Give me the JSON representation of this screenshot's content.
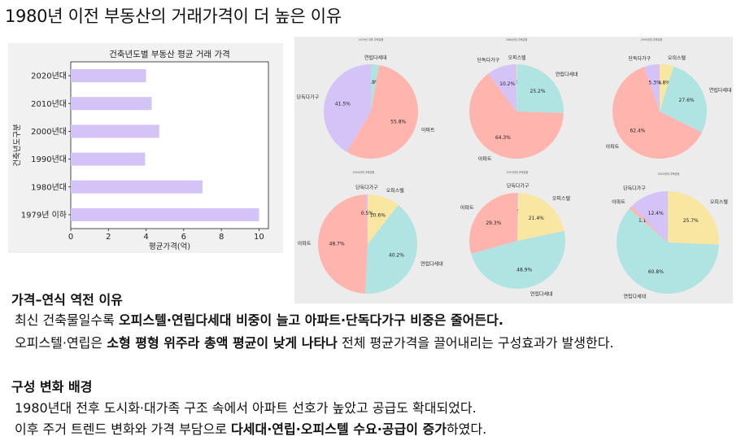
{
  "page": {
    "title": "1980년 이전 부동산의 거래가격이 더 높은 이유"
  },
  "chart_data": [
    {
      "type": "bar",
      "orientation": "horizontal",
      "title": "건축년도별 부동산 평균 거래 가격",
      "xlabel": "평균가격(억)",
      "ylabel": "건축년도구분",
      "categories": [
        "2020년대",
        "2010년대",
        "2000년대",
        "1990년대",
        "1980년대",
        "1979년 이하"
      ],
      "values": [
        4.0,
        4.3,
        4.7,
        3.95,
        7.0,
        10.0
      ],
      "xlim": [
        0,
        10.5
      ],
      "xticks": [
        "0",
        "2",
        "4",
        "6",
        "8",
        "10"
      ],
      "color": "#d3c3f7"
    },
    {
      "type": "pie",
      "title": "1979년 이하 주택유형",
      "slices": [
        {
          "label": "연립다세대",
          "value": 2.8,
          "pct_label": "2.8%",
          "color": "#b0e4e2"
        },
        {
          "label": "아파트",
          "value": 55.8,
          "pct_label": "55.8%",
          "color": "#ffb4ae"
        },
        {
          "label": "단독다가구",
          "value": 41.5,
          "pct_label": "41.5%",
          "color": "#d3c3f7"
        }
      ]
    },
    {
      "type": "pie",
      "title": "1980년대 주택유형",
      "slices": [
        {
          "label": "오피스텔",
          "value": 0.3,
          "pct_label": "0.3%",
          "color": "#f9e6a0"
        },
        {
          "label": "연립다세대",
          "value": 25.2,
          "pct_label": "25.2%",
          "color": "#b0e4e2"
        },
        {
          "label": "아파트",
          "value": 64.3,
          "pct_label": "64.3%",
          "color": "#ffb4ae"
        },
        {
          "label": "단독다가구",
          "value": 10.2,
          "pct_label": "10.2%",
          "color": "#d3c3f7"
        }
      ]
    },
    {
      "type": "pie",
      "title": "1990년대 주택유형",
      "slices": [
        {
          "label": "오피스텔",
          "value": 4.8,
          "pct_label": "4.8%",
          "color": "#f9e6a0"
        },
        {
          "label": "연립다세대",
          "value": 27.6,
          "pct_label": "27.6%",
          "color": "#b0e4e2"
        },
        {
          "label": "아파트",
          "value": 62.4,
          "pct_label": "62.4%",
          "color": "#ffb4ae"
        },
        {
          "label": "단독다가구",
          "value": 5.3,
          "pct_label": "5.3%",
          "color": "#d3c3f7"
        }
      ]
    },
    {
      "type": "pie",
      "title": "2000년대 주택유형",
      "slices": [
        {
          "label": "오피스텔",
          "value": 10.6,
          "pct_label": "10.6%",
          "color": "#f9e6a0"
        },
        {
          "label": "연립다세대",
          "value": 40.2,
          "pct_label": "40.2%",
          "color": "#b0e4e2"
        },
        {
          "label": "아파트",
          "value": 48.7,
          "pct_label": "48.7%",
          "color": "#ffb4ae"
        },
        {
          "label": "단독다가구",
          "value": 0.5,
          "pct_label": "0.5%",
          "color": "#d3c3f7"
        }
      ]
    },
    {
      "type": "pie",
      "title": "2010년대 주택유형",
      "slices": [
        {
          "label": "단독다가구",
          "value": 0.3,
          "pct_label": "0.3%",
          "color": "#d3c3f7"
        },
        {
          "label": "오피스텔",
          "value": 21.4,
          "pct_label": "21.4%",
          "color": "#f9e6a0"
        },
        {
          "label": "연립다세대",
          "value": 48.9,
          "pct_label": "48.9%",
          "color": "#b0e4e2"
        },
        {
          "label": "아파트",
          "value": 29.3,
          "pct_label": "29.3%",
          "color": "#ffb4ae"
        }
      ]
    },
    {
      "type": "pie",
      "title": "2020년대 주택유형",
      "slices": [
        {
          "label": "오피스텔",
          "value": 25.7,
          "pct_label": "25.7%",
          "color": "#f9e6a0"
        },
        {
          "label": "연립다세대",
          "value": 60.8,
          "pct_label": "60.8%",
          "color": "#b0e4e2"
        },
        {
          "label": "아파트",
          "value": 1.1,
          "pct_label": "1.1%",
          "color": "#ffb4ae"
        },
        {
          "label": "단독다가구",
          "value": 12.4,
          "pct_label": "12.4%",
          "color": "#d3c3f7"
        }
      ]
    }
  ],
  "sections": [
    {
      "heading": "가격–연식 역전 이유",
      "lines": [
        [
          {
            "text": "최신 건축물일수록 ",
            "bold": false
          },
          {
            "text": "오피스텔·연립다세대 비중이 늘고 아파트·단독다가구 비중은 줄어든다.",
            "bold": true
          }
        ],
        [
          {
            "text": "오피스텔·연립은 ",
            "bold": false
          },
          {
            "text": "소형 평형 위주라 총액 평균이 낮게 나타나",
            "bold": true
          },
          {
            "text": " 전체 평균가격을 끌어내리는 구성효과가 발생한다.",
            "bold": false
          }
        ]
      ]
    },
    {
      "heading": "구성 변화 배경",
      "lines": [
        [
          {
            "text": "1980년대 전후 도시화·대가족 구조 속에서 아파트 선호가 높았고 공급도 확대되었다.",
            "bold": false
          }
        ],
        [
          {
            "text": "이후 주거 트렌드 변화와 가격 부담으로 ",
            "bold": false
          },
          {
            "text": "다세대·연립·오피스텔 수요·공급이 증가",
            "bold": true
          },
          {
            "text": "하였다.",
            "bold": false
          }
        ]
      ]
    }
  ]
}
